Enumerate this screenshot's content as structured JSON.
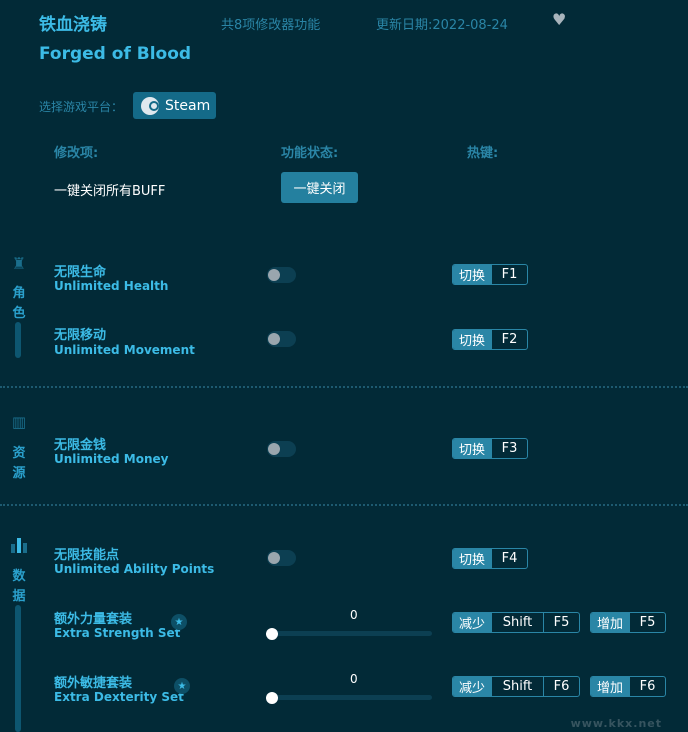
{
  "header": {
    "title": "铁血浇铸",
    "subtitle": "Forged of Blood",
    "count": "共8项修改器功能",
    "date": "更新日期:2022-08-24",
    "favorite_icon": "heart-icon"
  },
  "platform": {
    "label": "选择游戏平台：",
    "steam": "Steam"
  },
  "columns": {
    "item": "修改项:",
    "status": "功能状态:",
    "hotkey": "热键:"
  },
  "global": {
    "label": "一键关闭所有BUFF",
    "button": "一键关闭"
  },
  "sections": [
    {
      "name": [
        "角",
        "色"
      ],
      "icon": "character-icon"
    },
    {
      "name": [
        "资",
        "源"
      ],
      "icon": "basket-icon"
    },
    {
      "name": [
        "数",
        "据"
      ],
      "icon": "stats-icon"
    }
  ],
  "items": [
    {
      "cn": "无限生命",
      "en": "Unlimited Health",
      "hk_label": "切换",
      "key": "F1",
      "enabled": false
    },
    {
      "cn": "无限移动",
      "en": "Unlimited Movement",
      "hk_label": "切换",
      "key": "F2",
      "enabled": false
    },
    {
      "cn": "无限金钱",
      "en": "Unlimited Money",
      "hk_label": "切换",
      "key": "F3",
      "enabled": false
    },
    {
      "cn": "无限技能点",
      "en": "Unlimited Ability Points",
      "hk_label": "切换",
      "key": "F4",
      "enabled": false
    },
    {
      "cn": "额外力量套装",
      "en": "Extra Strength Set",
      "value": "0",
      "dec_label": "减少",
      "dec_mod": "Shift",
      "dec_key": "F5",
      "inc_label": "增加",
      "inc_key": "F5"
    },
    {
      "cn": "额外敏捷套装",
      "en": "Extra Dexterity Set",
      "value": "0",
      "dec_label": "减少",
      "dec_mod": "Shift",
      "dec_key": "F6",
      "inc_label": "增加",
      "inc_key": "F6"
    }
  ],
  "watermark": "www.kkx.net",
  "colors": {
    "background": "#022a37",
    "accent": "#3cbbe6",
    "button": "#24809f"
  }
}
